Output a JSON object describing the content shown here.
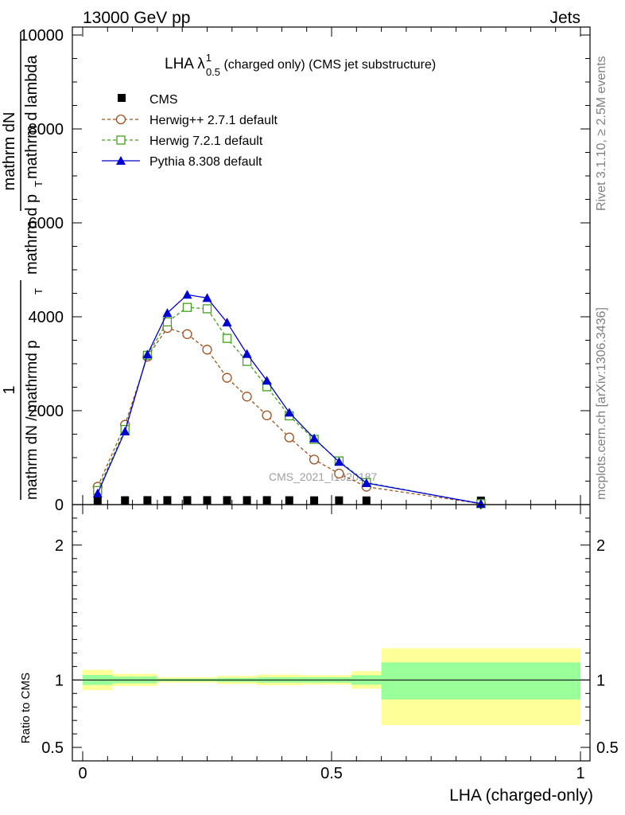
{
  "header": {
    "left": "13000 GeV pp",
    "right": "Jets"
  },
  "side_labels": {
    "rivet": "Rivet 3.1.10, ≥ 2.5M events",
    "mcplots": "mcplots.cern.ch [arXiv:1306.3436]"
  },
  "watermark": "CMS_2021_I1920187",
  "chart_data": [
    {
      "type": "line",
      "title": {
        "main": "LHA λ",
        "sup": "1",
        "sub": "0.5",
        "rest": " (charged only) (CMS jet substructure)"
      },
      "ylabel_lines": [
        "1",
        "mathrm dN / mathrmd p",
        "T",
        "mathrm dN",
        "mathrm d p",
        "T",
        "mathrm d lambda"
      ],
      "xlim": [
        0,
        1
      ],
      "ylim": [
        0,
        10000
      ],
      "y_ticks": [
        0,
        2000,
        4000,
        6000,
        8000,
        10000
      ],
      "y_tick_labels": [
        "0",
        "2000",
        "4000",
        "6000",
        "8000",
        "10000"
      ],
      "legend_position": "top-left",
      "x": [
        0.03,
        0.085,
        0.13,
        0.17,
        0.21,
        0.25,
        0.29,
        0.33,
        0.37,
        0.415,
        0.465,
        0.515,
        0.57,
        0.8
      ],
      "series": [
        {
          "name": "CMS",
          "marker": "filled-square",
          "line": "none",
          "color": "#000000",
          "values": [
            6,
            8,
            10,
            10,
            10,
            10,
            10,
            10,
            10,
            8,
            6,
            6,
            4,
            1
          ]
        },
        {
          "name": "Herwig++ 2.7.1 default",
          "marker": "open-circle",
          "line": "dashed",
          "color": "#a0501e",
          "values": [
            380,
            1700,
            3150,
            3760,
            3630,
            3300,
            2700,
            2300,
            1900,
            1430,
            960,
            660,
            380,
            20
          ]
        },
        {
          "name": "Herwig 7.2.1 default",
          "marker": "open-square",
          "line": "dashed",
          "color": "#44a01e",
          "values": [
            300,
            1600,
            3180,
            3890,
            4200,
            4170,
            3540,
            3050,
            2510,
            1890,
            1390,
            930,
            470,
            20
          ]
        },
        {
          "name": "Pythia 8.308 default",
          "marker": "filled-triangle",
          "line": "solid",
          "color": "#0000d4",
          "values": [
            240,
            1560,
            3200,
            4080,
            4470,
            4400,
            3880,
            3210,
            2640,
            1960,
            1410,
            910,
            460,
            20
          ]
        }
      ]
    },
    {
      "type": "area",
      "ylabel": "Ratio to CMS",
      "xlabel": "LHA (charged-only)",
      "xlim": [
        0,
        1
      ],
      "ylim": [
        0.4,
        2.3
      ],
      "x_ticks": [
        0,
        0.5,
        1
      ],
      "x_tick_labels": [
        "0",
        "0.5",
        "1"
      ],
      "y_ticks": [
        0.5,
        1,
        2
      ],
      "y_tick_labels": [
        "0.5",
        "1",
        "2"
      ],
      "bin_edges": [
        0,
        0.06,
        0.11,
        0.15,
        0.19,
        0.23,
        0.27,
        0.31,
        0.35,
        0.39,
        0.44,
        0.49,
        0.54,
        0.6,
        1.0
      ],
      "outer_band_color": "#ffff99",
      "inner_band_color": "#99ff99",
      "inner_band": {
        "low": [
          0.963,
          0.975,
          0.975,
          0.99,
          0.99,
          0.99,
          0.985,
          0.985,
          0.98,
          0.98,
          0.98,
          0.98,
          0.965,
          0.855
        ],
        "high": [
          1.037,
          1.025,
          1.025,
          1.01,
          1.01,
          1.01,
          1.015,
          1.015,
          1.02,
          1.02,
          1.02,
          1.02,
          1.035,
          1.13
        ]
      },
      "outer_band": {
        "low": [
          0.925,
          0.955,
          0.955,
          0.98,
          0.98,
          0.98,
          0.97,
          0.97,
          0.96,
          0.96,
          0.965,
          0.965,
          0.935,
          0.665
        ],
        "high": [
          1.075,
          1.045,
          1.045,
          1.02,
          1.02,
          1.02,
          1.03,
          1.03,
          1.04,
          1.04,
          1.035,
          1.035,
          1.065,
          1.235
        ]
      }
    }
  ]
}
